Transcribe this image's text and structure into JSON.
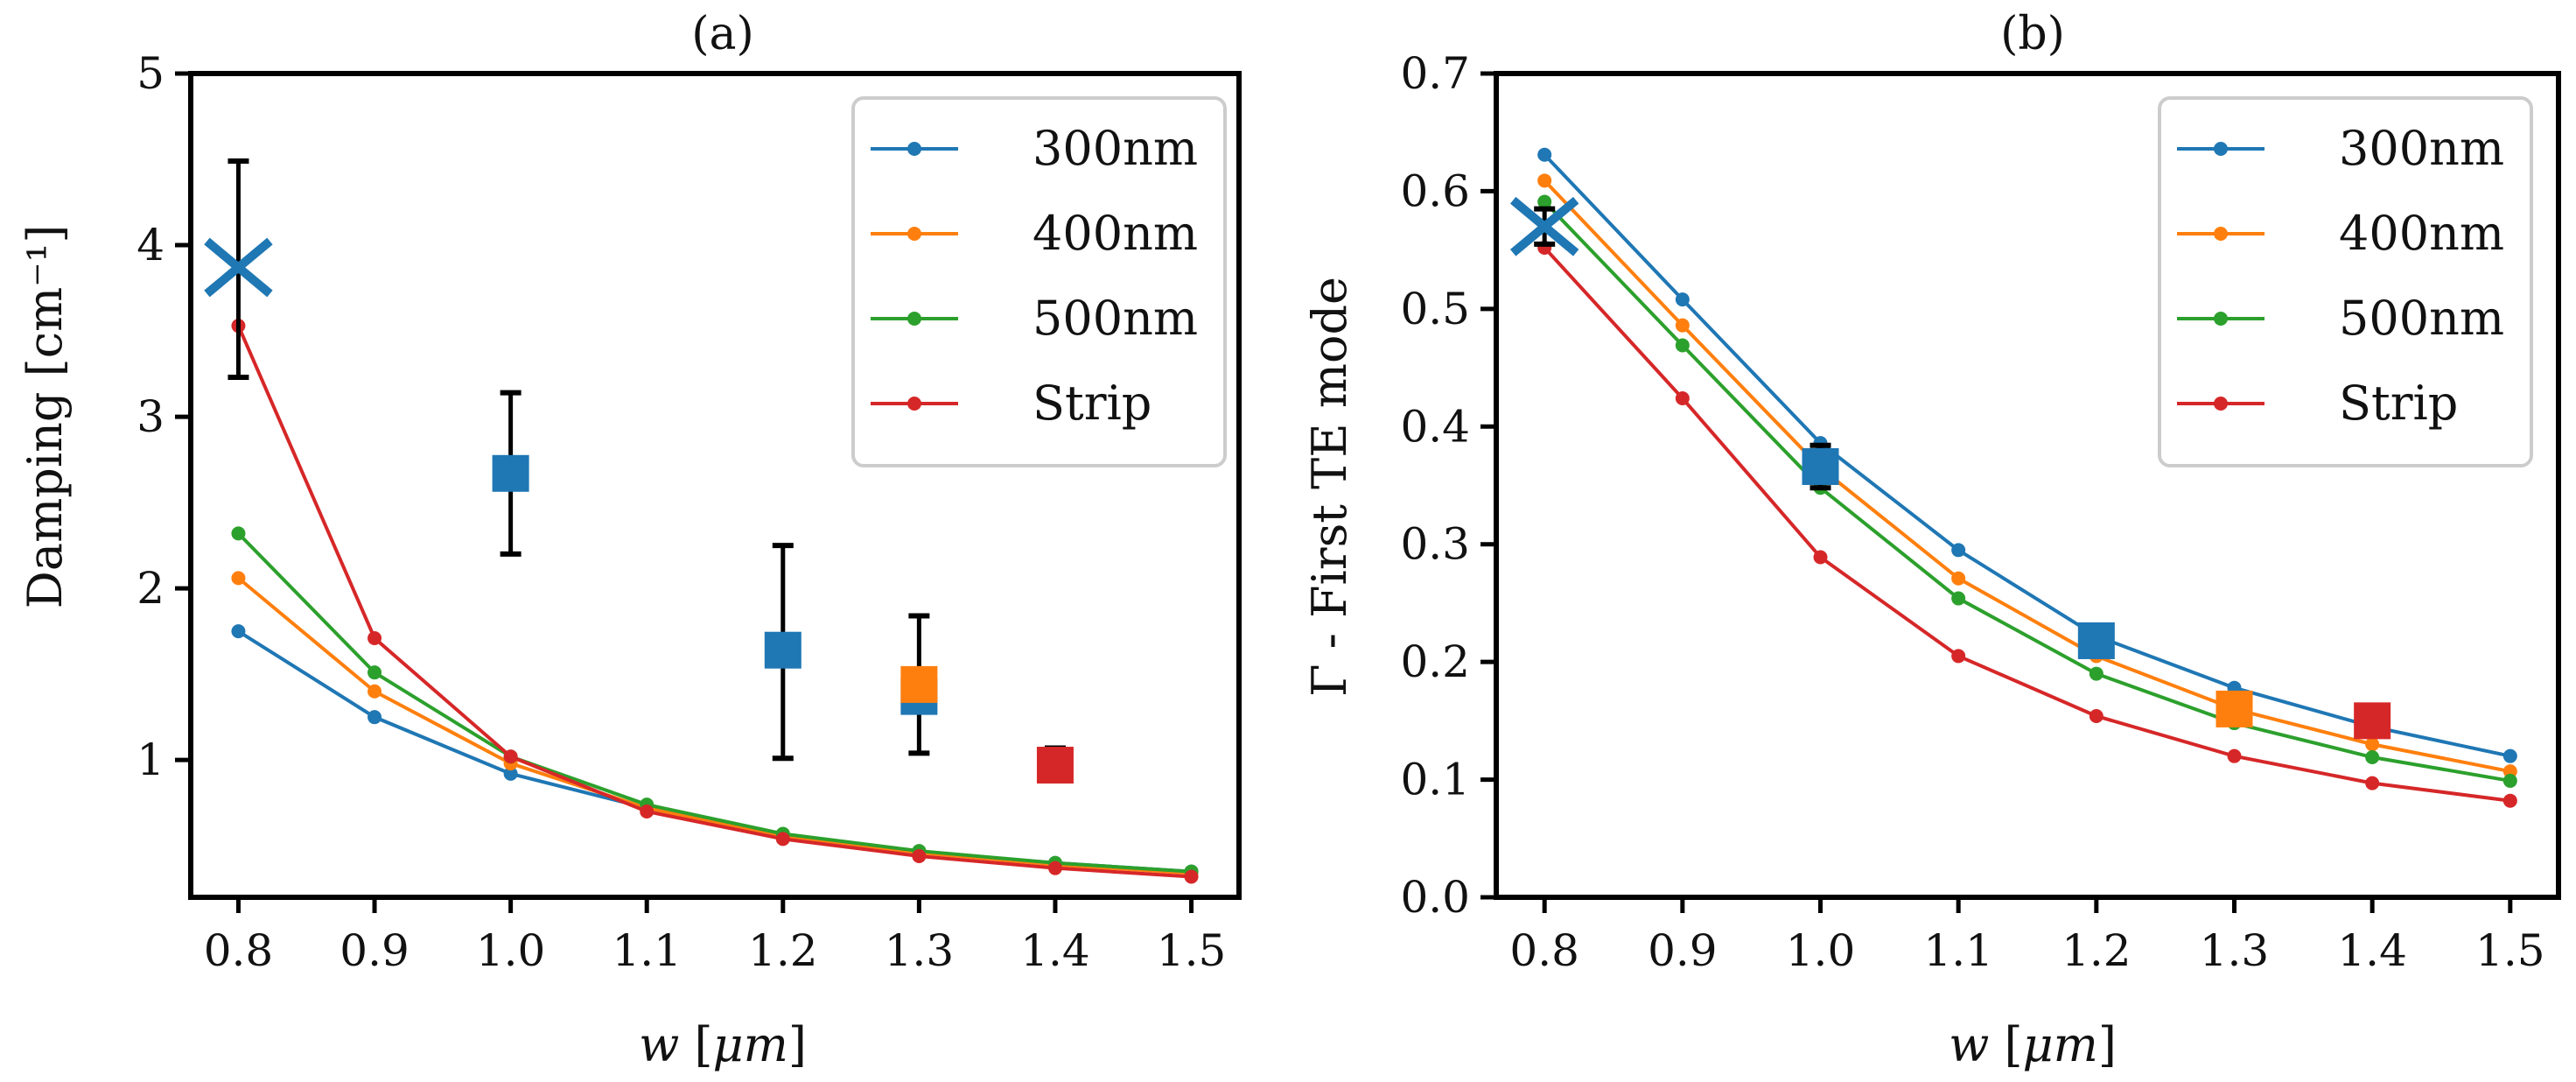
{
  "chart_data": [
    {
      "panel": "a",
      "type": "line",
      "title": "(a)",
      "xlabel": "w  [μm]",
      "ylabel": "Damping [cm⁻¹]",
      "xlim": [
        0.765,
        1.535
      ],
      "ylim": [
        0.2,
        5.0
      ],
      "xticks": [
        "0.8",
        "0.9",
        "1.0",
        "1.1",
        "1.2",
        "1.3",
        "1.4",
        "1.5"
      ],
      "yticks": [
        "1",
        "2",
        "3",
        "4",
        "5"
      ],
      "x": [
        0.8,
        0.9,
        1.0,
        1.1,
        1.2,
        1.3,
        1.4,
        1.5
      ],
      "series": [
        {
          "name": "300nm",
          "color": "#1f77b4",
          "values": [
            1.75,
            1.25,
            0.92,
            0.72,
            0.56,
            0.46,
            0.4,
            0.35
          ]
        },
        {
          "name": "400nm",
          "color": "#ff7f0e",
          "values": [
            2.06,
            1.4,
            0.98,
            0.72,
            0.56,
            0.46,
            0.39,
            0.34
          ]
        },
        {
          "name": "500nm",
          "color": "#2ca02c",
          "values": [
            2.32,
            1.51,
            1.02,
            0.74,
            0.57,
            0.47,
            0.4,
            0.35
          ]
        },
        {
          "name": "Strip",
          "color": "#d62728",
          "values": [
            3.53,
            1.71,
            1.02,
            0.7,
            0.54,
            0.44,
            0.37,
            0.32
          ]
        }
      ],
      "measurements": [
        {
          "x": 0.8,
          "y": 3.87,
          "lower": 3.23,
          "upper": 4.49,
          "marker": "x",
          "color": "#1f77b4"
        },
        {
          "x": 1.0,
          "y": 2.67,
          "lower": 2.2,
          "upper": 3.14,
          "marker": "square",
          "color": "#1f77b4"
        },
        {
          "x": 1.2,
          "y": 1.64,
          "lower": 1.01,
          "upper": 2.25,
          "marker": "square",
          "color": "#1f77b4"
        },
        {
          "x": 1.3,
          "y": 1.37,
          "lower": 1.04,
          "upper": 1.84,
          "marker": "square",
          "color": "#1f77b4"
        },
        {
          "x": 1.3,
          "y": 1.44,
          "marker": "square",
          "color": "#ff7f0e"
        },
        {
          "x": 1.4,
          "y": 0.97,
          "lower": 0.88,
          "upper": 1.07,
          "marker": "square",
          "color": "#d62728"
        }
      ],
      "legend": "top-right"
    },
    {
      "panel": "b",
      "type": "line",
      "title": "(b)",
      "xlabel": "w [μm]",
      "ylabel": "Γ - First TE mode",
      "xlim": [
        0.765,
        1.535
      ],
      "ylim": [
        0.0,
        0.7
      ],
      "xticks": [
        "0.8",
        "0.9",
        "1.0",
        "1.1",
        "1.2",
        "1.3",
        "1.4",
        "1.5"
      ],
      "yticks": [
        "0.0",
        "0.1",
        "0.2",
        "0.3",
        "0.4",
        "0.5",
        "0.6",
        "0.7"
      ],
      "x": [
        0.8,
        0.9,
        1.0,
        1.1,
        1.2,
        1.3,
        1.4,
        1.5
      ],
      "series": [
        {
          "name": "300nm",
          "color": "#1f77b4",
          "values": [
            0.631,
            0.508,
            0.386,
            0.295,
            0.222,
            0.178,
            0.145,
            0.12
          ]
        },
        {
          "name": "400nm",
          "color": "#ff7f0e",
          "values": [
            0.609,
            0.486,
            0.365,
            0.271,
            0.205,
            0.16,
            0.13,
            0.107
          ]
        },
        {
          "name": "500nm",
          "color": "#2ca02c",
          "values": [
            0.591,
            0.469,
            0.348,
            0.254,
            0.19,
            0.148,
            0.119,
            0.099
          ]
        },
        {
          "name": "Strip",
          "color": "#d62728",
          "values": [
            0.552,
            0.424,
            0.289,
            0.205,
            0.154,
            0.12,
            0.097,
            0.082
          ]
        }
      ],
      "measurements": [
        {
          "x": 0.8,
          "y": 0.57,
          "lower": 0.555,
          "upper": 0.585,
          "marker": "x",
          "color": "#1f77b4"
        },
        {
          "x": 1.0,
          "y": 0.366,
          "lower": 0.348,
          "upper": 0.384,
          "marker": "square",
          "color": "#1f77b4"
        },
        {
          "x": 1.2,
          "y": 0.218,
          "marker": "square",
          "color": "#1f77b4"
        },
        {
          "x": 1.3,
          "y": 0.16,
          "marker": "square",
          "color": "#ff7f0e"
        },
        {
          "x": 1.4,
          "y": 0.15,
          "marker": "square",
          "color": "#d62728"
        }
      ],
      "legend": "top-right"
    }
  ]
}
